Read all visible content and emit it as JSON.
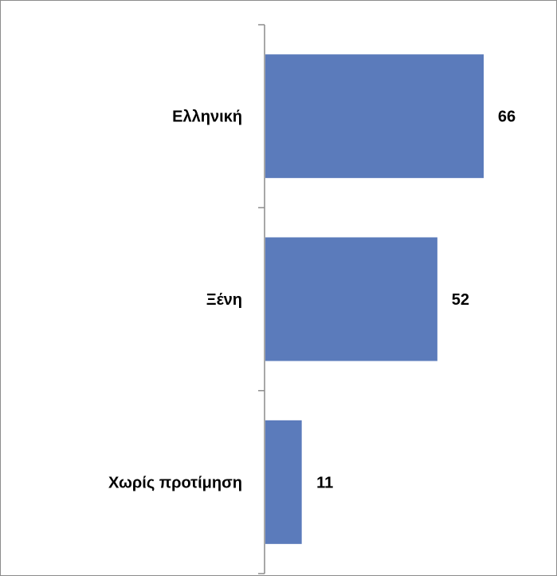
{
  "chart_data": {
    "type": "bar",
    "orientation": "horizontal",
    "categories": [
      "Ελληνική",
      "Ξένη",
      "Χωρίς προτίμηση"
    ],
    "values": [
      66,
      52,
      11
    ],
    "data_labels": [
      "66",
      "52",
      "11"
    ],
    "xlim": [
      0,
      66
    ],
    "grid": false,
    "legend": "none",
    "colors": {
      "bar": "#5b7bbb",
      "axis": "#8c8c8c",
      "text": "#000000"
    }
  }
}
